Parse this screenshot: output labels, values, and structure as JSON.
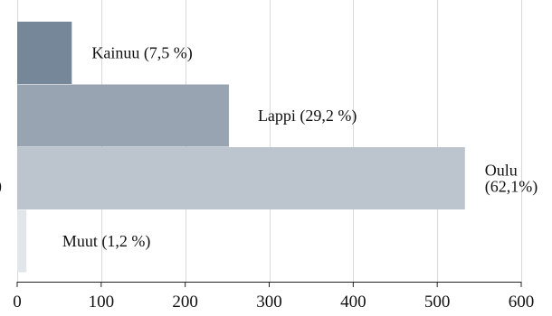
{
  "chart_data": {
    "type": "bar",
    "orientation": "horizontal",
    "categories": [
      "Kainuu",
      "Lappi",
      "Oulu",
      "Muut"
    ],
    "values": [
      65,
      252,
      533,
      11
    ],
    "bar_labels": [
      [
        "Kainuu (7,5 %)"
      ],
      [
        "Lappi (29,2 %)"
      ],
      [
        "Oulu",
        "(62,1%)"
      ],
      [
        "Muut (1,2 %)"
      ]
    ],
    "bar_colors": [
      "#768799",
      "#98a4b1",
      "#bcc4cd",
      "#e2e5e9"
    ],
    "xlim": [
      0,
      600
    ],
    "x_ticks": [
      "0",
      "100",
      "200",
      "300",
      "400",
      "500",
      "600"
    ],
    "grid": true,
    "cut_label": ")"
  }
}
